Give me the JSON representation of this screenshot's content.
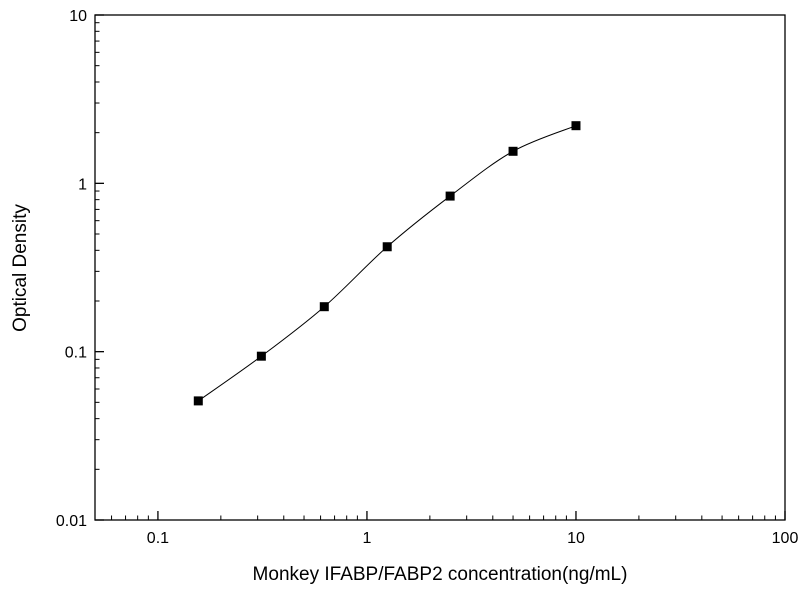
{
  "chart_data": {
    "type": "scatter",
    "title": "",
    "xlabel": "Monkey IFABP/FABP2 concentration(ng/mL)",
    "ylabel": "Optical Density",
    "x_scale": "log",
    "y_scale": "log",
    "xlim": [
      0.05,
      100
    ],
    "ylim": [
      0.01,
      10
    ],
    "grid": false,
    "legend": "none",
    "marker": "filled-square",
    "line_style": "smooth-thin",
    "x": [
      0.156,
      0.3125,
      0.625,
      1.25,
      2.5,
      5,
      10
    ],
    "y": [
      0.051,
      0.094,
      0.185,
      0.42,
      0.84,
      1.55,
      2.2
    ],
    "x_ticks": [
      {
        "value": 0.1,
        "label": "0.1"
      },
      {
        "value": 1,
        "label": "1"
      },
      {
        "value": 10,
        "label": "10"
      },
      {
        "value": 100,
        "label": "100"
      }
    ],
    "y_ticks": [
      {
        "value": 0.01,
        "label": "0.01"
      },
      {
        "value": 0.1,
        "label": "0.1"
      },
      {
        "value": 1,
        "label": "1"
      },
      {
        "value": 10,
        "label": "10"
      }
    ],
    "colors": {
      "axis": "#000000",
      "marker": "#000000",
      "line": "#000000",
      "background": "#ffffff"
    }
  }
}
